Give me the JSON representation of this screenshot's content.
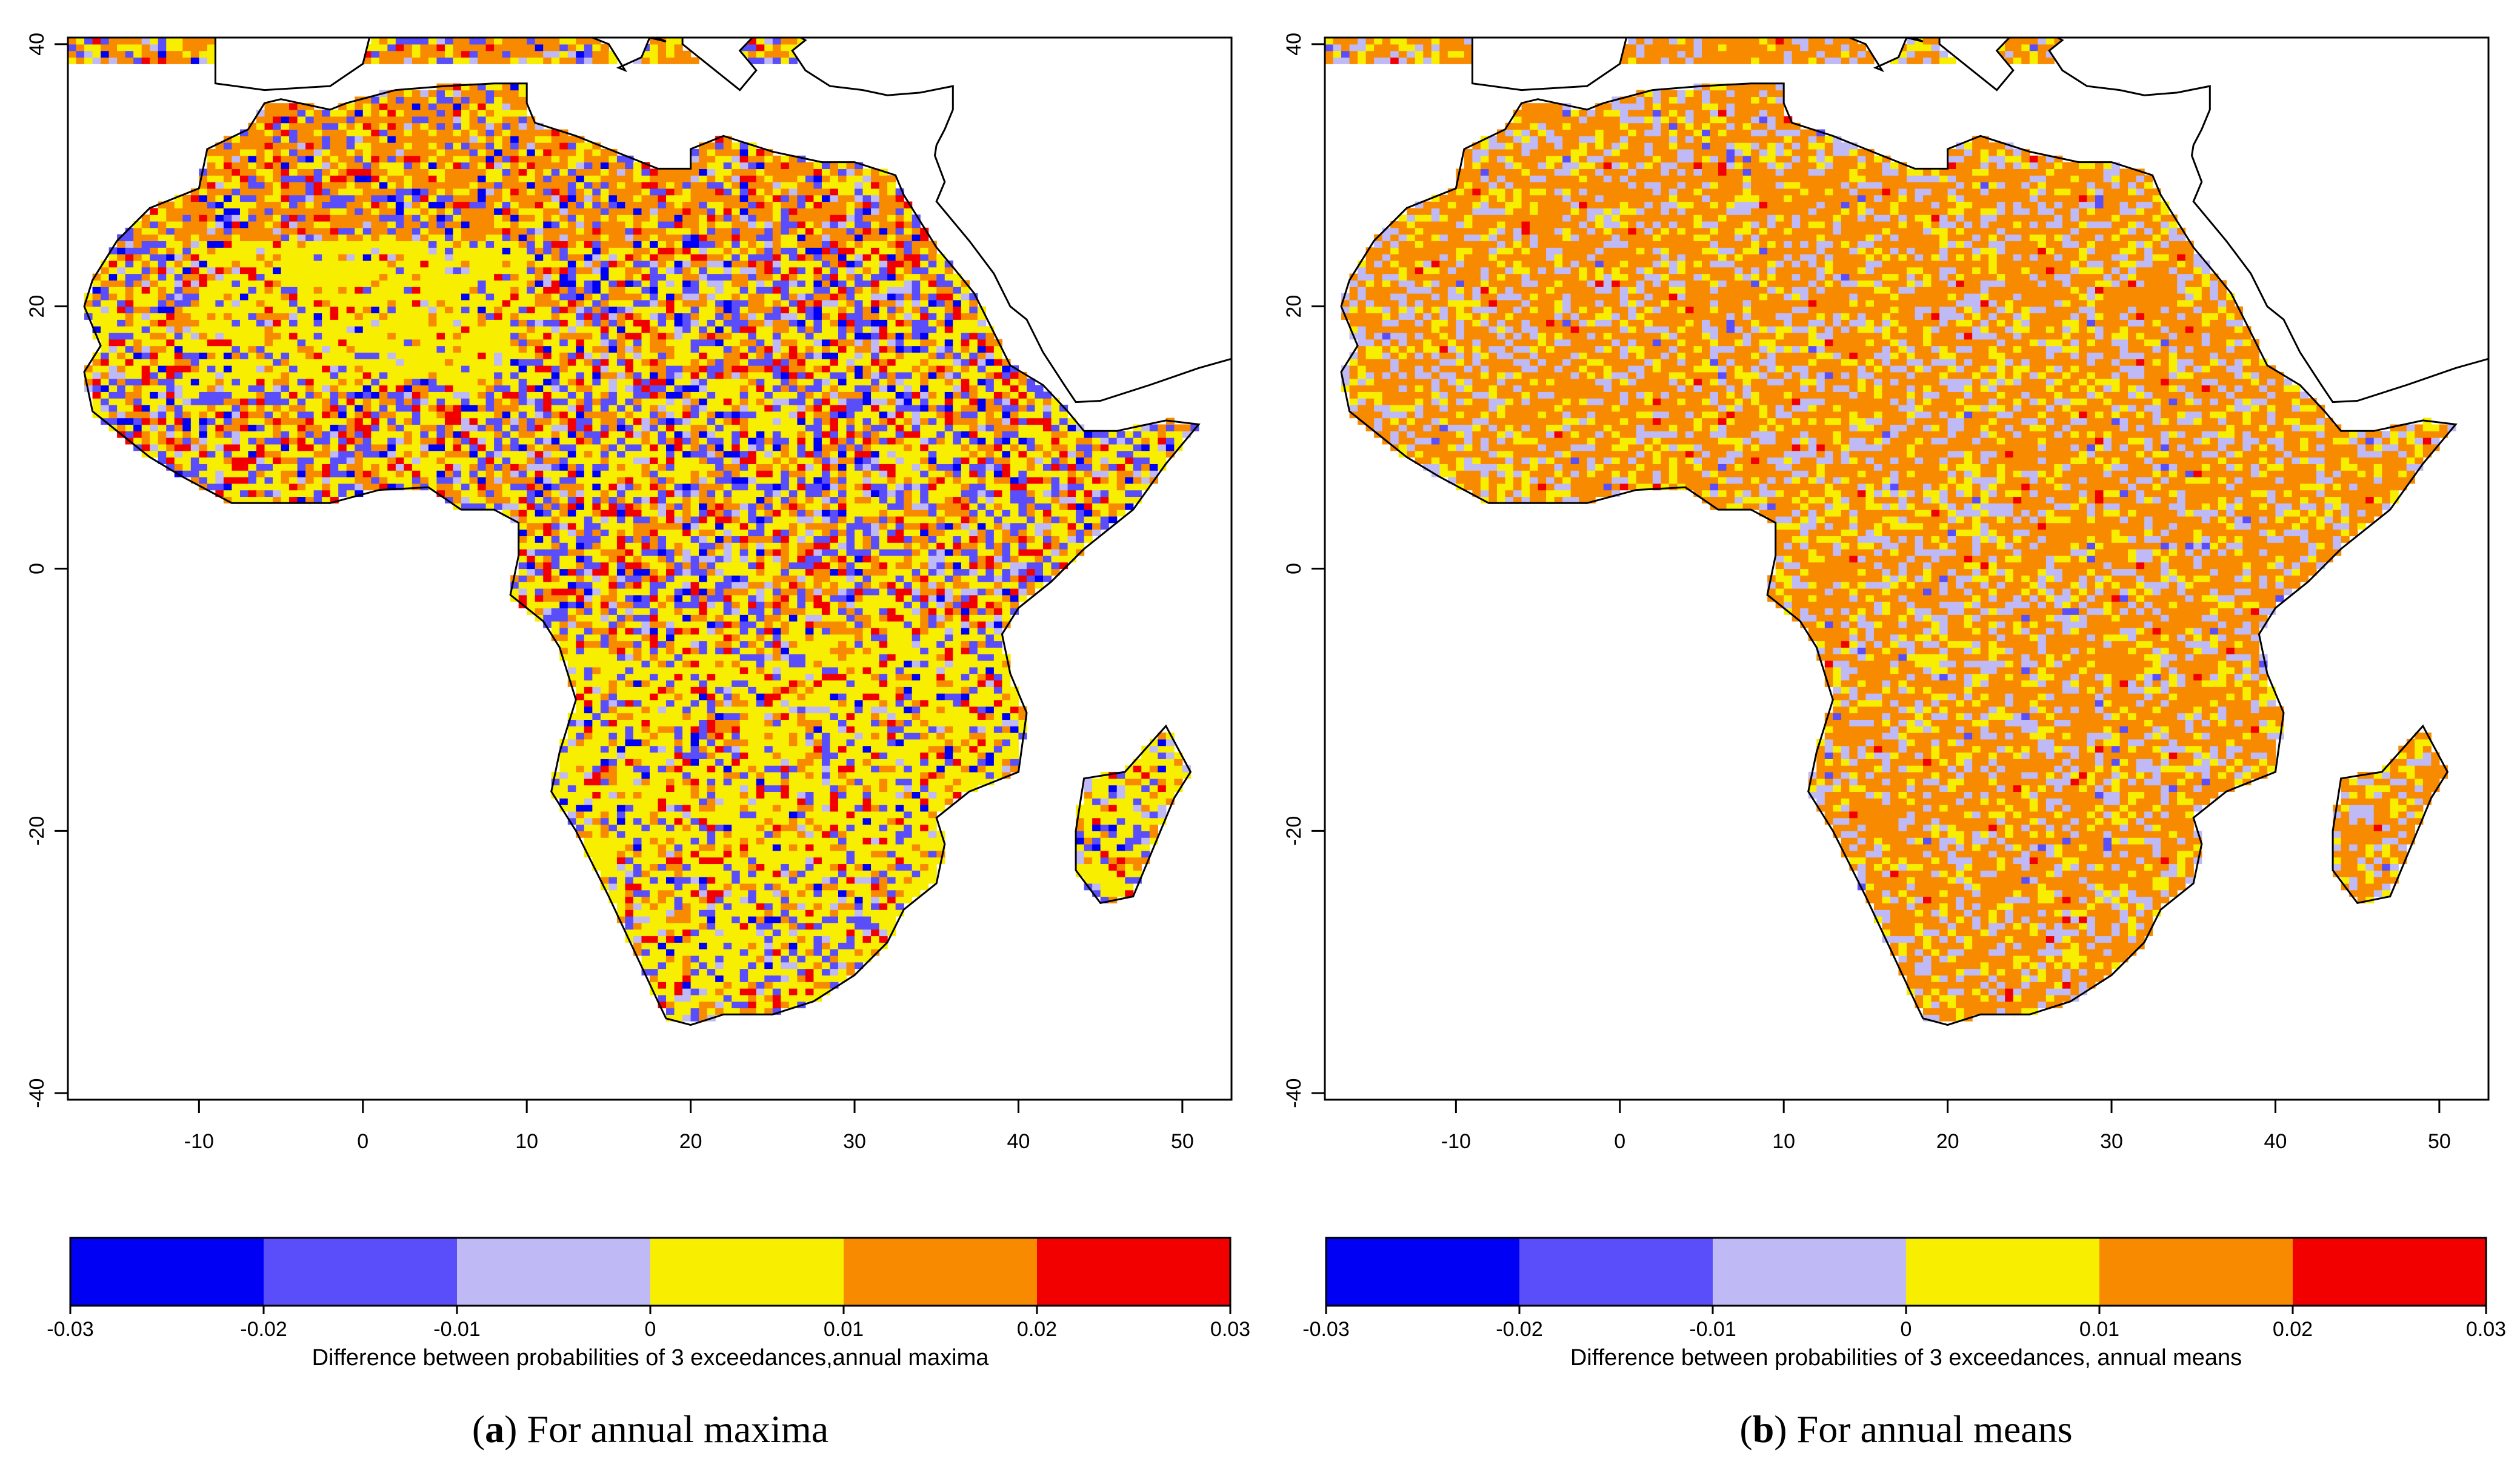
{
  "panels": [
    {
      "id": "a",
      "caption_letter": "a",
      "caption_text": " For annual maxima",
      "colorbar_label": "Difference between probabilities of 3 exceedances,annual maxima",
      "dominant_class": "mixed",
      "color_mix": [
        0.05,
        0.22,
        0.08,
        0.42,
        0.23
      ],
      "red_density": 0.1
    },
    {
      "id": "b",
      "caption_letter": "b",
      "caption_text": " For annual means",
      "colorbar_label": "Difference between probabilities of 3 exceedances, annual means",
      "dominant_class": "orange",
      "color_mix": [
        0.0,
        0.01,
        0.2,
        0.17,
        0.62
      ],
      "red_density": 0.01
    }
  ],
  "axes": {
    "x_range": [
      -18,
      53
    ],
    "y_range": [
      -40.5,
      40.5
    ],
    "x_ticks": [
      "-10",
      "0",
      "10",
      "20",
      "30",
      "40",
      "50"
    ],
    "x_tick_values": [
      -10,
      0,
      10,
      20,
      30,
      40,
      50
    ],
    "y_ticks": [
      "-40",
      "-20",
      "0",
      "20",
      "40"
    ],
    "y_tick_values": [
      -40,
      -20,
      0,
      20,
      40
    ]
  },
  "legend": {
    "breaks": [
      "-0.03",
      "-0.02",
      "-0.01",
      "0",
      "0.01",
      "0.02",
      "0.03"
    ],
    "colors": [
      "#0000f5",
      "#5a4dfa",
      "#bfbaf5",
      "#f8ef00",
      "#f88a00",
      "#f20000"
    ]
  },
  "colors": {
    "coast": "#000000",
    "sea": "#ffffff"
  }
}
